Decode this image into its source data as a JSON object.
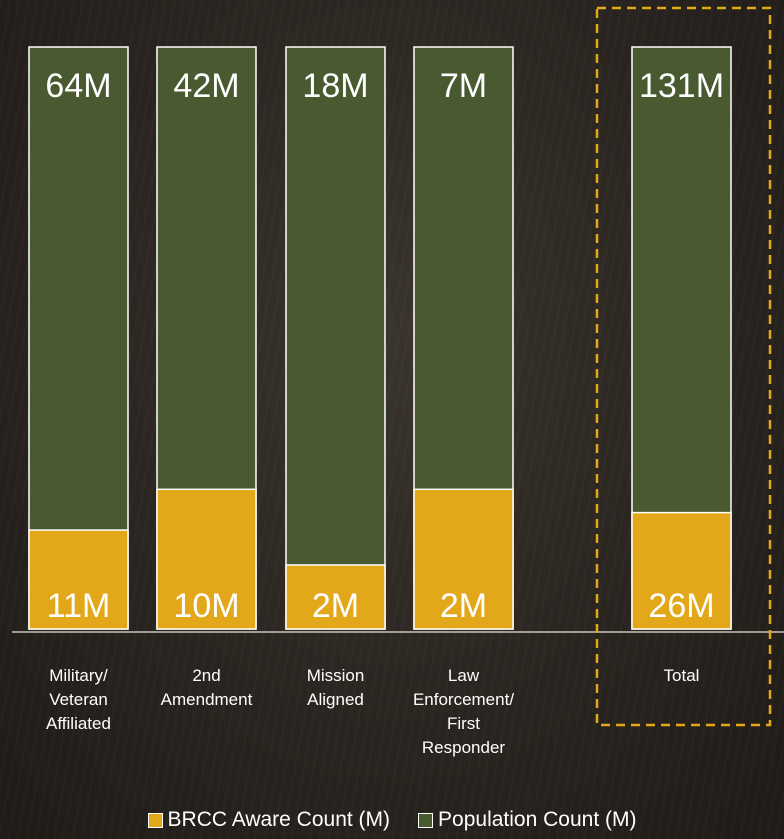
{
  "chart_data": {
    "type": "bar",
    "stacked": true,
    "categories": [
      "Military/ Veteran Affiliated",
      "2nd Amendment",
      "Mission Aligned",
      "Law Enforcement/ First Responder",
      "Total"
    ],
    "category_lines": [
      [
        "Military/",
        "Veteran",
        "Affiliated"
      ],
      [
        "2nd",
        "Amendment"
      ],
      [
        "Mission",
        "Aligned"
      ],
      [
        "Law",
        "Enforcement/",
        "First",
        "Responder"
      ],
      [
        "Total"
      ]
    ],
    "series": [
      {
        "name": "BRCC Aware Count (M)",
        "values": [
          11,
          10,
          2,
          2,
          26
        ],
        "labels": [
          "11M",
          "10M",
          "2M",
          "2M",
          "26M"
        ],
        "share_of_population": [
          0.17,
          0.24,
          0.11,
          0.24,
          0.2
        ],
        "color": "#e3a81a"
      },
      {
        "name": "Population Count (M)",
        "values": [
          64,
          42,
          18,
          7,
          131
        ],
        "labels": [
          "64M",
          "42M",
          "18M",
          "7M",
          "131M"
        ],
        "color": "#495a31"
      }
    ],
    "normalized": true,
    "highlight_category": "Total",
    "highlight_color": "#e3a81a",
    "legend_position": "bottom",
    "grid": false
  }
}
